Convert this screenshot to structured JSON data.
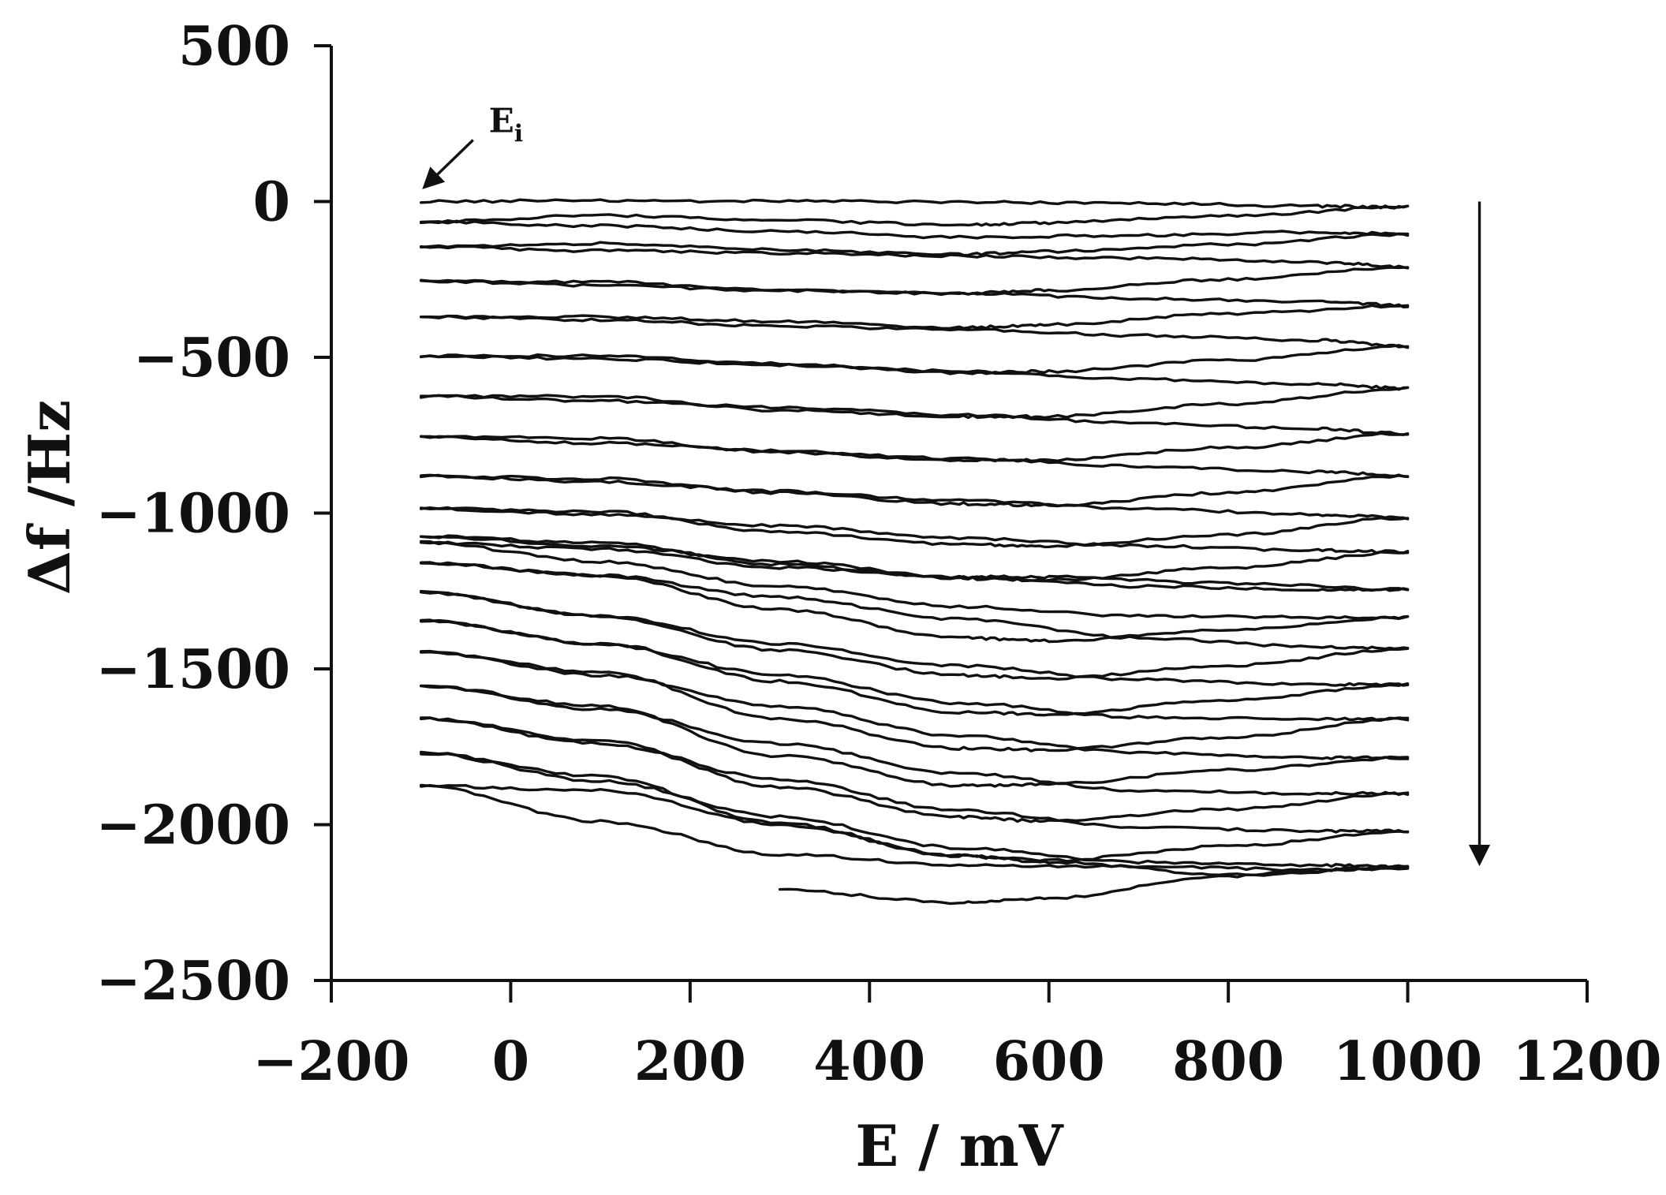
{
  "chart_data": {
    "type": "line",
    "xlabel": "E / mV",
    "ylabel": "Δf /Hz",
    "xlim": [
      -200,
      1200
    ],
    "ylim": [
      -2500,
      500
    ],
    "xticks": [
      -200,
      0,
      200,
      400,
      600,
      800,
      1000,
      1200
    ],
    "yticks": [
      500,
      0,
      -500,
      -1000,
      -1500,
      -2000,
      -2500
    ],
    "xtick_labels": [
      "−200",
      "0",
      "200",
      "400",
      "600",
      "800",
      "1000",
      "1200"
    ],
    "ytick_labels": [
      "500",
      "0",
      "−500",
      "−1000",
      "−1500",
      "−2000",
      "−2500"
    ],
    "grid": false,
    "colors": {
      "line": "#111111",
      "axis": "#111111"
    },
    "annotation": {
      "label": "E",
      "subscript": "i",
      "points_to": [
        -100,
        0
      ]
    },
    "direction_arrow": {
      "x": 1080,
      "from_y": 0,
      "to_y": -2150
    },
    "series": [
      {
        "x": [
          -100,
          100,
          300,
          500,
          700,
          900,
          1000
        ],
        "y": [
          0,
          3,
          1,
          -2,
          -5,
          -15,
          -18
        ]
      },
      {
        "x": [
          1000,
          800,
          600,
          500,
          300,
          100,
          -100
        ],
        "y": [
          -18,
          -45,
          -68,
          -75,
          -60,
          -45,
          -65
        ]
      },
      {
        "x": [
          -100,
          100,
          300,
          500,
          700,
          900,
          1000
        ],
        "y": [
          -65,
          -78,
          -95,
          -115,
          -108,
          -98,
          -105
        ]
      },
      {
        "x": [
          1000,
          800,
          600,
          500,
          300,
          100,
          -100
        ],
        "y": [
          -105,
          -138,
          -160,
          -170,
          -155,
          -135,
          -145
        ]
      },
      {
        "x": [
          -100,
          100,
          300,
          500,
          700,
          900,
          1000
        ],
        "y": [
          -145,
          -158,
          -165,
          -175,
          -182,
          -195,
          -210
        ]
      },
      {
        "x": [
          1000,
          800,
          600,
          500,
          300,
          100,
          -100
        ],
        "y": [
          -210,
          -250,
          -285,
          -295,
          -285,
          -258,
          -255
        ]
      },
      {
        "x": [
          -100,
          100,
          300,
          500,
          700,
          900,
          1000
        ],
        "y": [
          -255,
          -270,
          -285,
          -295,
          -312,
          -320,
          -335
        ]
      },
      {
        "x": [
          1000,
          800,
          600,
          500,
          300,
          100,
          -100
        ],
        "y": [
          -335,
          -360,
          -395,
          -405,
          -385,
          -370,
          -370
        ]
      },
      {
        "x": [
          -100,
          100,
          300,
          500,
          700,
          900,
          1000
        ],
        "y": [
          -370,
          -380,
          -400,
          -410,
          -430,
          -445,
          -465
        ]
      },
      {
        "x": [
          1000,
          800,
          600,
          500,
          300,
          100,
          -100
        ],
        "y": [
          -465,
          -510,
          -545,
          -550,
          -520,
          -495,
          -495
        ]
      },
      {
        "x": [
          -100,
          100,
          300,
          500,
          700,
          900,
          1000
        ],
        "y": [
          -495,
          -505,
          -525,
          -545,
          -570,
          -585,
          -600
        ]
      },
      {
        "x": [
          1000,
          800,
          600,
          500,
          300,
          100,
          -100
        ],
        "y": [
          -600,
          -650,
          -690,
          -690,
          -670,
          -625,
          -625
        ]
      },
      {
        "x": [
          -100,
          100,
          300,
          500,
          700,
          900,
          1000
        ],
        "y": [
          -625,
          -640,
          -660,
          -685,
          -710,
          -730,
          -745
        ]
      },
      {
        "x": [
          1000,
          800,
          600,
          500,
          300,
          100,
          -100
        ],
        "y": [
          -745,
          -790,
          -830,
          -830,
          -805,
          -760,
          -755
        ]
      },
      {
        "x": [
          -100,
          100,
          300,
          500,
          700,
          900,
          1000
        ],
        "y": [
          -755,
          -775,
          -800,
          -825,
          -850,
          -868,
          -880
        ]
      },
      {
        "x": [
          1000,
          800,
          600,
          500,
          300,
          100,
          -100
        ],
        "y": [
          -880,
          -935,
          -975,
          -970,
          -935,
          -890,
          -880
        ]
      },
      {
        "x": [
          -100,
          100,
          300,
          500,
          700,
          900,
          1000
        ],
        "y": [
          -880,
          -900,
          -930,
          -960,
          -985,
          -1005,
          -1015
        ]
      },
      {
        "x": [
          1000,
          800,
          600,
          500,
          300,
          100,
          -100
        ],
        "y": [
          -1015,
          -1070,
          -1105,
          -1100,
          -1060,
          -995,
          -985
        ]
      },
      {
        "x": [
          -100,
          100,
          300,
          500,
          700,
          900,
          1000
        ],
        "y": [
          -985,
          -1005,
          -1040,
          -1080,
          -1105,
          -1120,
          -1125
        ]
      },
      {
        "x": [
          1000,
          800,
          600,
          500,
          300,
          100,
          -100
        ],
        "y": [
          -1125,
          -1175,
          -1215,
          -1210,
          -1165,
          -1095,
          -1075
        ]
      },
      {
        "x": [
          -100,
          100,
          300,
          500,
          700,
          900,
          1000
        ],
        "y": [
          -1075,
          -1105,
          -1155,
          -1205,
          -1235,
          -1245,
          -1245
        ]
      },
      {
        "x": [
          1000,
          800,
          600,
          500,
          300,
          100,
          -100
        ],
        "y": [
          -1245,
          -1225,
          -1205,
          -1205,
          -1175,
          -1115,
          -1095
        ]
      },
      {
        "x": [
          -100,
          100,
          300,
          500,
          700,
          900,
          1000
        ],
        "y": [
          -1095,
          -1155,
          -1235,
          -1300,
          -1330,
          -1335,
          -1335
        ]
      },
      {
        "x": [
          1000,
          800,
          600,
          500,
          300,
          100,
          -100
        ],
        "y": [
          -1335,
          -1375,
          -1410,
          -1400,
          -1310,
          -1200,
          -1160
        ]
      },
      {
        "x": [
          -100,
          100,
          300,
          500,
          700,
          900,
          1000
        ],
        "y": [
          -1160,
          -1200,
          -1270,
          -1340,
          -1400,
          -1430,
          -1435
        ]
      },
      {
        "x": [
          1000,
          800,
          600,
          500,
          300,
          100,
          -100
        ],
        "y": [
          -1435,
          -1490,
          -1530,
          -1520,
          -1440,
          -1330,
          -1255
        ]
      },
      {
        "x": [
          -100,
          100,
          300,
          500,
          700,
          900,
          1000
        ],
        "y": [
          -1255,
          -1330,
          -1420,
          -1490,
          -1535,
          -1550,
          -1550
        ]
      },
      {
        "x": [
          1000,
          800,
          600,
          500,
          300,
          100,
          -100
        ],
        "y": [
          -1550,
          -1600,
          -1645,
          -1640,
          -1540,
          -1420,
          -1345
        ]
      },
      {
        "x": [
          -100,
          100,
          300,
          500,
          700,
          900,
          1000
        ],
        "y": [
          -1345,
          -1420,
          -1520,
          -1610,
          -1655,
          -1660,
          -1660
        ]
      },
      {
        "x": [
          1000,
          800,
          600,
          500,
          300,
          100,
          -100
        ],
        "y": [
          -1660,
          -1720,
          -1760,
          -1755,
          -1660,
          -1510,
          -1445
        ]
      },
      {
        "x": [
          -100,
          100,
          300,
          500,
          700,
          900,
          1000
        ],
        "y": [
          -1445,
          -1520,
          -1620,
          -1715,
          -1770,
          -1785,
          -1785
        ]
      },
      {
        "x": [
          1000,
          800,
          600,
          500,
          300,
          100,
          -100
        ],
        "y": [
          -1785,
          -1825,
          -1870,
          -1875,
          -1780,
          -1620,
          -1555
        ]
      },
      {
        "x": [
          -100,
          100,
          300,
          500,
          700,
          900,
          1000
        ],
        "y": [
          -1555,
          -1630,
          -1740,
          -1835,
          -1890,
          -1900,
          -1900
        ]
      },
      {
        "x": [
          1000,
          800,
          600,
          500,
          300,
          100,
          -100
        ],
        "y": [
          -1900,
          -1950,
          -1990,
          -1975,
          -1880,
          -1730,
          -1660
        ]
      },
      {
        "x": [
          -100,
          100,
          300,
          500,
          700,
          900,
          1000
        ],
        "y": [
          -1660,
          -1740,
          -1855,
          -1955,
          -2010,
          -2020,
          -2020
        ]
      },
      {
        "x": [
          1000,
          800,
          600,
          500,
          300,
          100,
          -100
        ],
        "y": [
          -2020,
          -2070,
          -2115,
          -2100,
          -1995,
          -1845,
          -1770
        ]
      },
      {
        "x": [
          -100,
          100,
          300,
          500,
          700,
          900,
          1000
        ],
        "y": [
          -1770,
          -1860,
          -1975,
          -2075,
          -2120,
          -2130,
          -2135
        ]
      },
      {
        "x": [
          1000,
          800,
          600,
          500,
          300,
          100,
          -100
        ],
        "y": [
          -2135,
          -2160,
          -2120,
          -2100,
          -2000,
          -1890,
          -1875
        ]
      },
      {
        "x": [
          -100,
          100,
          300,
          500,
          700,
          900,
          1000
        ],
        "y": [
          -1875,
          -1990,
          -2095,
          -2130,
          -2135,
          -2145,
          -2140
        ]
      },
      {
        "x": [
          1000,
          800,
          600,
          500,
          300
        ],
        "y": [
          -2140,
          -2165,
          -2235,
          -2250,
          -2210
        ]
      }
    ]
  }
}
